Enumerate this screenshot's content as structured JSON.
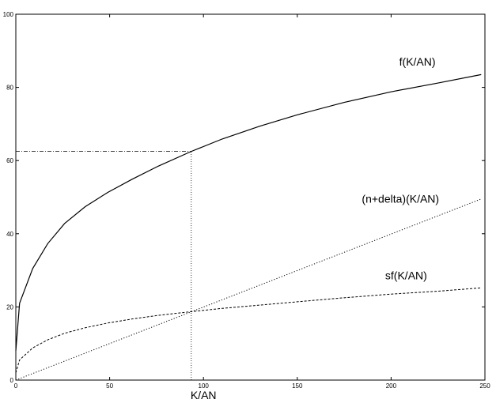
{
  "chart_data": {
    "type": "line",
    "title": "",
    "xlabel": "K/AN",
    "ylabel": "",
    "xlim": [
      0,
      250
    ],
    "ylim": [
      0,
      100
    ],
    "x_ticks": [
      0,
      50,
      100,
      150,
      200,
      250
    ],
    "y_ticks": [
      0,
      20,
      40,
      60,
      80,
      100
    ],
    "grid": false,
    "legend": "none",
    "series": [
      {
        "name": "f(K/AN)",
        "style": "solid",
        "x": [
          0,
          2,
          9,
          17,
          26,
          37,
          49,
          62,
          76,
          93.5,
          110,
          130,
          150,
          175,
          200,
          225,
          248
        ],
        "y": [
          8,
          21,
          30.5,
          37.3,
          42.8,
          47.4,
          51.3,
          54.9,
          58.5,
          62.5,
          65.9,
          69.4,
          72.5,
          75.9,
          78.8,
          81.2,
          83.5
        ]
      },
      {
        "name": "(n+delta)(K/AN)",
        "style": "dotted",
        "x": [
          0,
          248
        ],
        "y": [
          0,
          49.5
        ]
      },
      {
        "name": "sf(K/AN)",
        "style": "dashed",
        "x": [
          0,
          2,
          9,
          17,
          26,
          37,
          49,
          62,
          76,
          93.5,
          110,
          130,
          150,
          175,
          200,
          225,
          248
        ],
        "y": [
          2,
          5.5,
          8.8,
          11,
          12.8,
          14.3,
          15.6,
          16.7,
          17.7,
          18.7,
          19.6,
          20.5,
          21.4,
          22.5,
          23.5,
          24.3,
          25.2
        ]
      }
    ],
    "annotations": [
      {
        "text": "f(K/AN)",
        "x": 214,
        "y": 86,
        "series": 0
      },
      {
        "text": "(n+delta)(K/AN)",
        "x": 205,
        "y": 48.5,
        "series": 1
      },
      {
        "text": "sf(K/AN)",
        "x": 208,
        "y": 27.5,
        "series": 2
      }
    ],
    "reference_lines": {
      "steady_state_k": 93.5,
      "steady_state_output": 62.5,
      "steady_state_investment": 18.7
    }
  }
}
